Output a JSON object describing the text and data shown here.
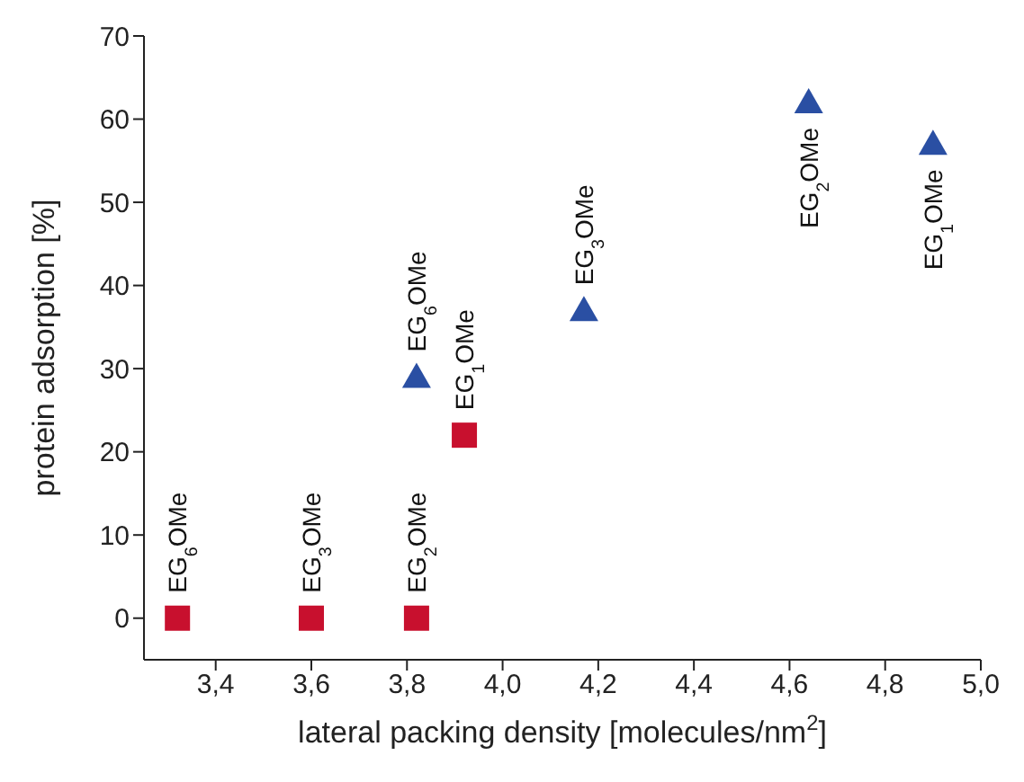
{
  "chart_data": {
    "type": "scatter",
    "xlabel": "lateral packing density [molecules/nm$^{2}$]",
    "ylabel": "protein adsorption [%]",
    "xlim": [
      3.25,
      5.0
    ],
    "xticks": [
      {
        "value": 3.4,
        "label": "3,4"
      },
      {
        "value": 3.6,
        "label": "3,6"
      },
      {
        "value": 3.8,
        "label": "3,8"
      },
      {
        "value": 4.0,
        "label": "4,0"
      },
      {
        "value": 4.2,
        "label": "4,2"
      },
      {
        "value": 4.4,
        "label": "4,4"
      },
      {
        "value": 4.6,
        "label": "4,6"
      },
      {
        "value": 4.8,
        "label": "4,8"
      },
      {
        "value": 5.0,
        "label": "5,0"
      }
    ],
    "ylim": [
      -5,
      70
    ],
    "yticks": [
      0,
      10,
      20,
      30,
      40,
      50,
      60,
      70
    ],
    "grid": false,
    "series": [
      {
        "color": "#c8102e",
        "marker": "square",
        "x": [
          3.32,
          3.6,
          3.82,
          3.92
        ],
        "values": [
          0,
          0,
          0,
          22
        ]
      },
      {
        "color": "#2a4fa3",
        "marker": "triangle",
        "x": [
          3.82,
          4.17,
          4.64,
          4.9
        ],
        "values": [
          29,
          37,
          62,
          57
        ]
      }
    ],
    "annotations": [
      {
        "text": "EG$_{6}$OMe",
        "x": 3.32,
        "y": 0
      },
      {
        "text": "EG$_{3}$OMe",
        "x": 3.6,
        "y": 0
      },
      {
        "text": "EG$_{2}$OMe",
        "x": 3.82,
        "y": 0
      },
      {
        "text": "EG$_{1}$OMe",
        "x": 3.92,
        "y": 22
      },
      {
        "text": "EG$_{6}$OMe",
        "x": 3.82,
        "y": 29
      },
      {
        "text": "EG$_{3}$OMe",
        "x": 4.17,
        "y": 37
      },
      {
        "text": "EG$_{2}$OMe",
        "x": 4.64,
        "y": 62
      },
      {
        "text": "EG$_{1}$OMe",
        "x": 4.9,
        "y": 57
      }
    ]
  }
}
